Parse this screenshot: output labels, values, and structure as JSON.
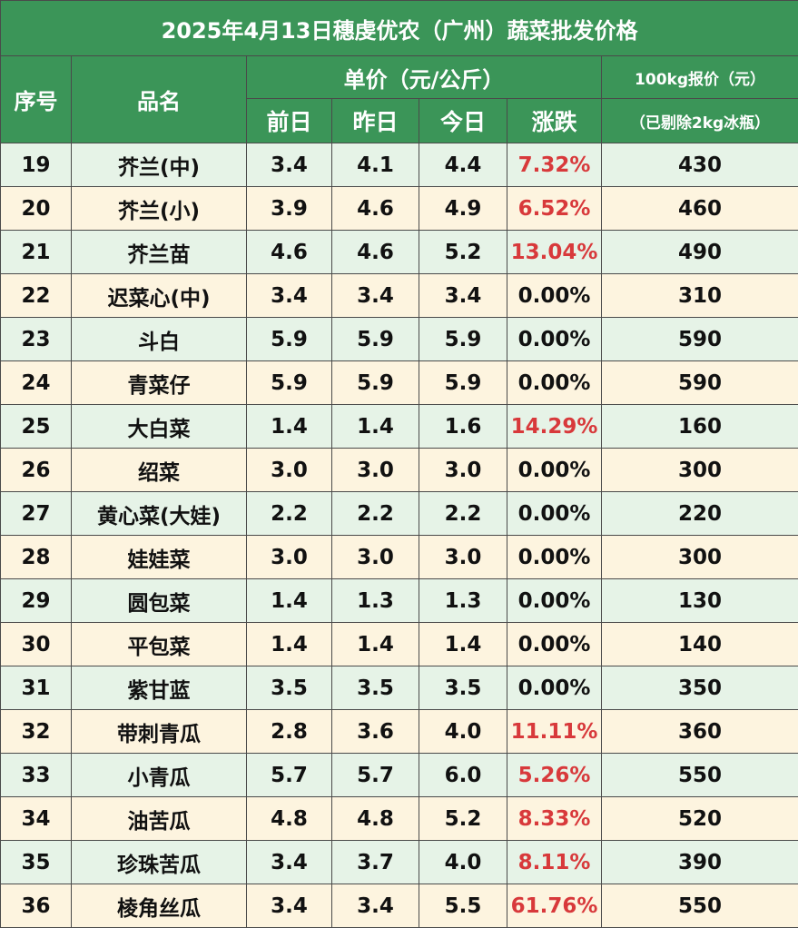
{
  "title": "2025年4月13日穗虔优农（广州）蔬菜批发价格",
  "headers": {
    "index": "序号",
    "name": "品名",
    "unit_price": "单价（元/公斤）",
    "prev_day": "前日",
    "yesterday": "昨日",
    "today": "今日",
    "change": "涨跌",
    "quote": "100kg报价（元）",
    "quote_note": "（已剔除2kg冰瓶）"
  },
  "rows": [
    {
      "index": "19",
      "name": "芥兰(中)",
      "prev_day": "3.4",
      "yesterday": "4.1",
      "today": "4.4",
      "change": "7.32%",
      "quote": "430",
      "rising": true
    },
    {
      "index": "20",
      "name": "芥兰(小)",
      "prev_day": "3.9",
      "yesterday": "4.6",
      "today": "4.9",
      "change": "6.52%",
      "quote": "460",
      "rising": true
    },
    {
      "index": "21",
      "name": "芥兰苗",
      "prev_day": "4.6",
      "yesterday": "4.6",
      "today": "5.2",
      "change": "13.04%",
      "quote": "490",
      "rising": true
    },
    {
      "index": "22",
      "name": "迟菜心(中)",
      "prev_day": "3.4",
      "yesterday": "3.4",
      "today": "3.4",
      "change": "0.00%",
      "quote": "310",
      "rising": false
    },
    {
      "index": "23",
      "name": "斗白",
      "prev_day": "5.9",
      "yesterday": "5.9",
      "today": "5.9",
      "change": "0.00%",
      "quote": "590",
      "rising": false
    },
    {
      "index": "24",
      "name": "青菜仔",
      "prev_day": "5.9",
      "yesterday": "5.9",
      "today": "5.9",
      "change": "0.00%",
      "quote": "590",
      "rising": false
    },
    {
      "index": "25",
      "name": "大白菜",
      "prev_day": "1.4",
      "yesterday": "1.4",
      "today": "1.6",
      "change": "14.29%",
      "quote": "160",
      "rising": true
    },
    {
      "index": "26",
      "name": "绍菜",
      "prev_day": "3.0",
      "yesterday": "3.0",
      "today": "3.0",
      "change": "0.00%",
      "quote": "300",
      "rising": false
    },
    {
      "index": "27",
      "name": "黄心菜(大娃)",
      "prev_day": "2.2",
      "yesterday": "2.2",
      "today": "2.2",
      "change": "0.00%",
      "quote": "220",
      "rising": false
    },
    {
      "index": "28",
      "name": "娃娃菜",
      "prev_day": "3.0",
      "yesterday": "3.0",
      "today": "3.0",
      "change": "0.00%",
      "quote": "300",
      "rising": false
    },
    {
      "index": "29",
      "name": "圆包菜",
      "prev_day": "1.4",
      "yesterday": "1.3",
      "today": "1.3",
      "change": "0.00%",
      "quote": "130",
      "rising": false
    },
    {
      "index": "30",
      "name": "平包菜",
      "prev_day": "1.4",
      "yesterday": "1.4",
      "today": "1.4",
      "change": "0.00%",
      "quote": "140",
      "rising": false
    },
    {
      "index": "31",
      "name": "紫甘蓝",
      "prev_day": "3.5",
      "yesterday": "3.5",
      "today": "3.5",
      "change": "0.00%",
      "quote": "350",
      "rising": false
    },
    {
      "index": "32",
      "name": "带刺青瓜",
      "prev_day": "2.8",
      "yesterday": "3.6",
      "today": "4.0",
      "change": "11.11%",
      "quote": "360",
      "rising": true
    },
    {
      "index": "33",
      "name": "小青瓜",
      "prev_day": "5.7",
      "yesterday": "5.7",
      "today": "6.0",
      "change": "5.26%",
      "quote": "550",
      "rising": true
    },
    {
      "index": "34",
      "name": "油苦瓜",
      "prev_day": "4.8",
      "yesterday": "4.8",
      "today": "5.2",
      "change": "8.33%",
      "quote": "520",
      "rising": true
    },
    {
      "index": "35",
      "name": "珍珠苦瓜",
      "prev_day": "3.4",
      "yesterday": "3.7",
      "today": "4.0",
      "change": "8.11%",
      "quote": "390",
      "rising": true
    },
    {
      "index": "36",
      "name": "棱角丝瓜",
      "prev_day": "3.4",
      "yesterday": "3.4",
      "today": "5.5",
      "change": "61.76%",
      "quote": "550",
      "rising": true
    }
  ],
  "colors": {
    "header_green": "#3b9558",
    "row_green": "#e6f3e7",
    "row_cream": "#fdf4df",
    "rise_red": "#d8393b"
  }
}
